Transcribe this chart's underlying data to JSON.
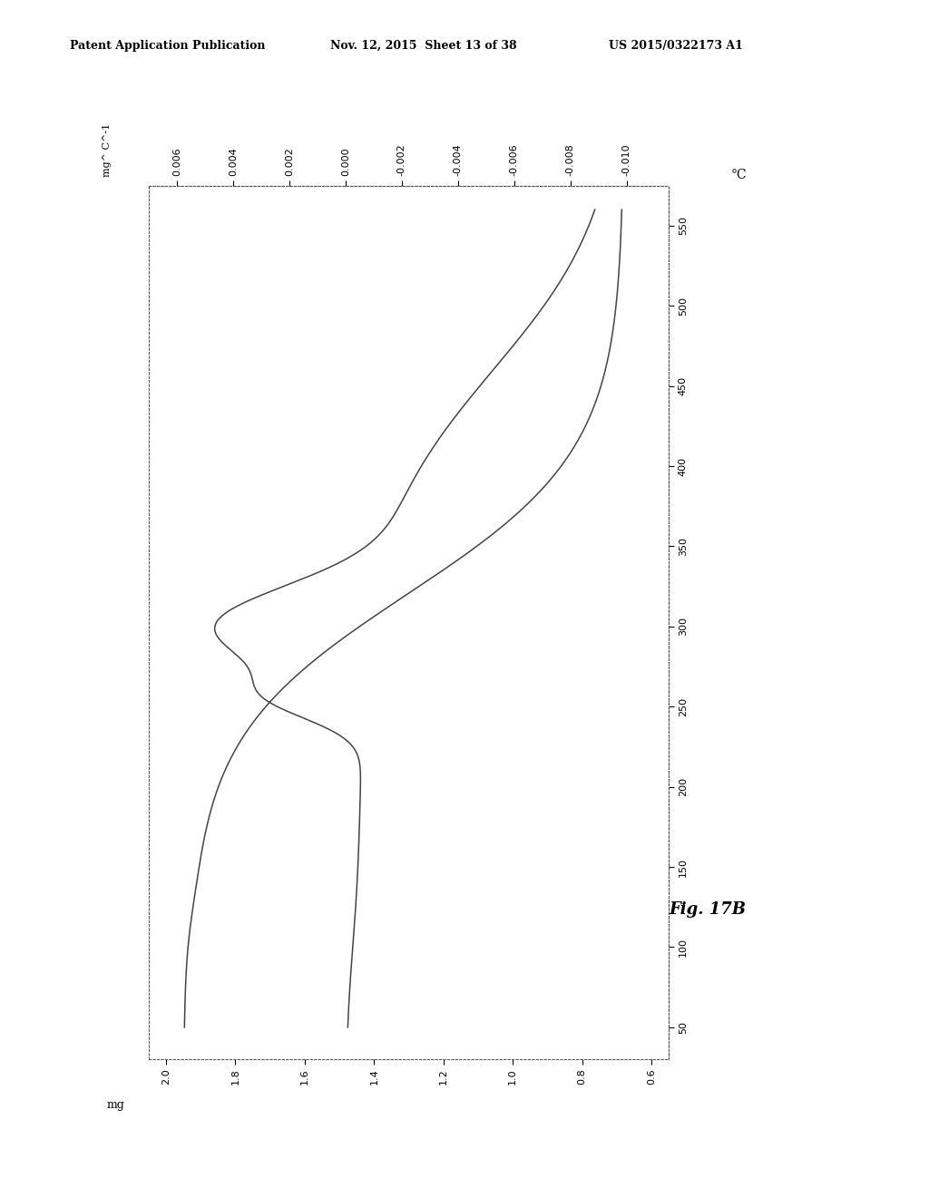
{
  "header_left": "Patent Application Publication",
  "header_mid": "Nov. 12, 2015  Sheet 13 of 38",
  "header_right": "US 2015/0322173 A1",
  "fig_label": "Fig. 17B",
  "bg_color": "#ffffff",
  "line_color": "#444444",
  "temp_min": 50,
  "temp_max": 560,
  "temp_ticks": [
    50,
    100,
    150,
    200,
    250,
    300,
    350,
    400,
    450,
    500,
    550
  ],
  "mg_min": 0.6,
  "mg_max": 2.0,
  "mg_ticks": [
    2.0,
    1.8,
    1.6,
    1.4,
    1.2,
    1.0,
    0.8,
    0.6
  ],
  "deriv_min": -0.01,
  "deriv_max": 0.006,
  "deriv_ticks": [
    0.006,
    0.004,
    0.002,
    0.0,
    -0.002,
    -0.004,
    -0.006,
    -0.008,
    -0.01
  ],
  "ylabel_tga": "mg",
  "ylabel_deriv": "mg^ C^-1",
  "xlabel_temp": "°C"
}
